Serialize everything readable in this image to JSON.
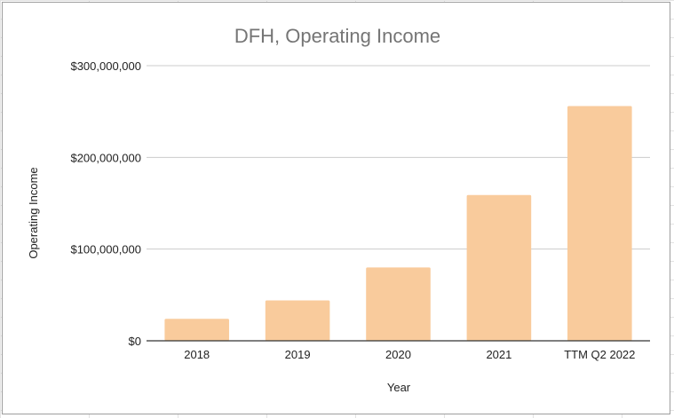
{
  "chart_data": {
    "type": "bar",
    "title": "DFH, Operating Income",
    "xlabel": "Year",
    "ylabel": "Operating Income",
    "categories": [
      "2018",
      "2019",
      "2020",
      "2021",
      "TTM Q2 2022"
    ],
    "values": [
      24000000,
      44000000,
      80000000,
      159000000,
      256000000
    ],
    "ylim": [
      0,
      300000000
    ],
    "yticks": [
      0,
      100000000,
      200000000,
      300000000
    ],
    "ytick_labels": [
      "$0",
      "$100,000,000",
      "$200,000,000",
      "$300,000,000"
    ],
    "grid": true,
    "legend": "none",
    "colors": {
      "bar": "#f9cb9c",
      "grid": "#cccccc",
      "axis": "#333333",
      "title": "#757575",
      "text": "#222222"
    }
  }
}
